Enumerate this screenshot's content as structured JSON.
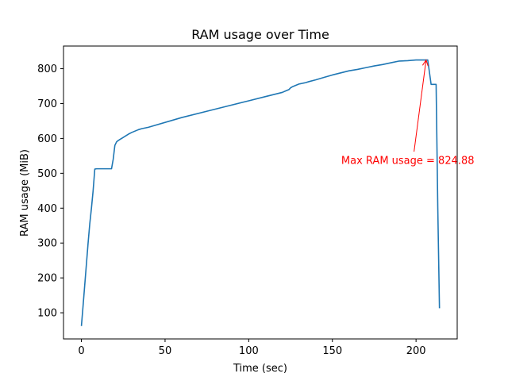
{
  "chart_data": {
    "type": "line",
    "title": "RAM usage over Time",
    "xlabel": "Time (sec)",
    "ylabel": "RAM usage (MiB)",
    "xlim": [
      -10.7,
      224.6
    ],
    "ylim": [
      25,
      865
    ],
    "xticks": [
      0,
      50,
      100,
      150,
      200
    ],
    "yticks": [
      100,
      200,
      300,
      400,
      500,
      600,
      700,
      800
    ],
    "grid": false,
    "series": [
      {
        "color": "#1f77b4",
        "x": [
          0,
          1,
          2,
          3,
          4,
          5,
          6,
          7,
          8,
          9,
          10,
          12,
          14,
          16,
          18,
          19,
          20,
          21,
          22,
          23,
          24,
          26,
          28,
          30,
          32,
          34,
          36,
          40,
          60,
          80,
          100,
          110,
          120,
          122,
          124,
          125,
          126,
          127,
          128,
          129,
          130,
          131,
          132,
          133,
          134,
          136,
          140,
          145,
          150,
          155,
          160,
          165,
          170,
          175,
          180,
          185,
          190,
          195,
          200,
          204,
          206,
          207,
          208,
          209,
          210,
          211,
          212,
          213,
          214
        ],
        "y": [
          62,
          120,
          180,
          240,
          300,
          355,
          400,
          450,
          512,
          513,
          513,
          513,
          513,
          513,
          513,
          540,
          580,
          590,
          594,
          597,
          600,
          606,
          612,
          617,
          621,
          625,
          628,
          632,
          660,
          684,
          708,
          720,
          732,
          736,
          740,
          745,
          748,
          750,
          752,
          754,
          756,
          757,
          758,
          759,
          760,
          763,
          768,
          775,
          782,
          788,
          794,
          798,
          803,
          808,
          812,
          817,
          822,
          823,
          825,
          825,
          825,
          825,
          790,
          755,
          755,
          755,
          755,
          400,
          113
        ]
      }
    ],
    "annotation": {
      "text": "Max RAM usage = 824.88",
      "point": [
        206,
        824.88
      ],
      "text_pos": [
        155.3,
        527
      ],
      "arrow_tail": [
        198.8,
        562
      ],
      "color": "#ff0000"
    }
  }
}
